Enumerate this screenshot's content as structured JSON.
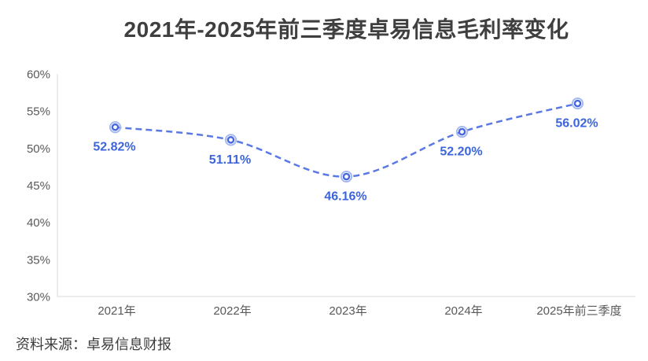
{
  "title": "2021年-2025年前三季度卓易信息毛利率变化",
  "source": "资料来源：卓易信息财报",
  "colors": {
    "line": "#5b79e3",
    "marker_ring": "#4767df",
    "marker_halo": "#a6b8f0",
    "marker_fill": "#ffffff",
    "data_label": "#3d65db",
    "axis": "#d9d9d9",
    "tick_text": "#595959",
    "title_text": "#3f3f3f"
  },
  "chart_data": {
    "type": "line",
    "title": "2021年-2025年前三季度卓易信息毛利率变化",
    "categories": [
      "2021年",
      "2022年",
      "2023年",
      "2024年",
      "2025年前三季度"
    ],
    "values": [
      52.82,
      51.11,
      46.16,
      52.2,
      56.02
    ],
    "data_labels": [
      "52.82%",
      "51.11%",
      "46.16%",
      "52.20%",
      "56.02%"
    ],
    "series_name": "毛利率",
    "xlabel": "",
    "ylabel": "",
    "ylim": [
      30,
      60
    ],
    "ytick_step": 5,
    "ytick_labels": [
      "30%",
      "35%",
      "40%",
      "45%",
      "50%",
      "55%",
      "60%"
    ],
    "line_style": "dashed",
    "smooth": true,
    "markers": "double-circle",
    "grid": false,
    "legend": "none"
  }
}
